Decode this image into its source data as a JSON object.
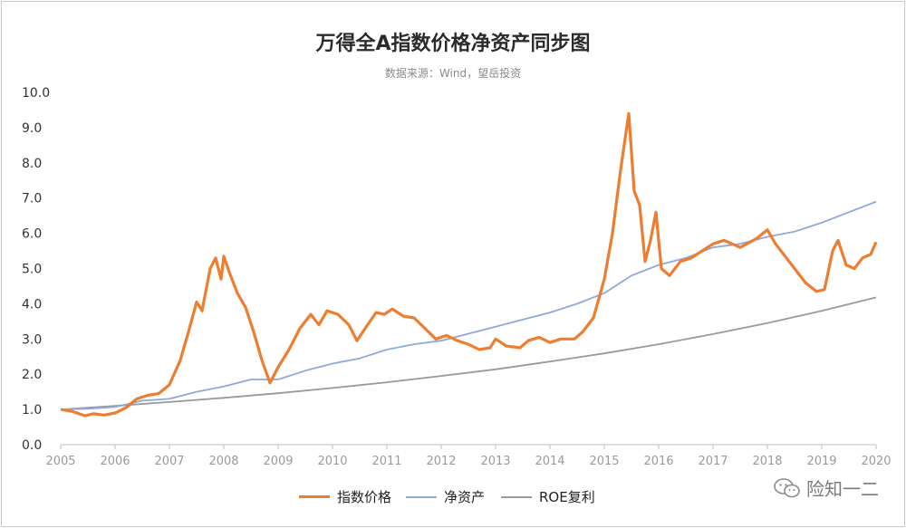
{
  "title": "万得全A指数价格净资产同步图",
  "subtitle": "数据来源：Wind，望岳投资",
  "watermark": "险知一二",
  "chart_data": {
    "type": "line",
    "title": "万得全A指数价格净资产同步图",
    "subtitle": "数据来源：Wind，望岳投资",
    "xlabel": "",
    "ylabel": "",
    "xlim": [
      2005,
      2020
    ],
    "ylim": [
      0,
      10
    ],
    "x_ticks": [
      "2005",
      "2006",
      "2007",
      "2008",
      "2009",
      "2010",
      "2011",
      "2012",
      "2013",
      "2014",
      "2015",
      "2016",
      "2017",
      "2018",
      "2019",
      "2020"
    ],
    "y_ticks": [
      "0.0",
      "1.0",
      "2.0",
      "3.0",
      "4.0",
      "5.0",
      "6.0",
      "7.0",
      "8.0",
      "9.0",
      "10.0"
    ],
    "grid": false,
    "legend_position": "bottom",
    "series": [
      {
        "name": "指数价格",
        "color": "#ed7d31",
        "points": [
          [
            2005.0,
            1.0
          ],
          [
            2005.2,
            0.95
          ],
          [
            2005.45,
            0.82
          ],
          [
            2005.6,
            0.88
          ],
          [
            2005.8,
            0.84
          ],
          [
            2006.0,
            0.9
          ],
          [
            2006.2,
            1.05
          ],
          [
            2006.4,
            1.3
          ],
          [
            2006.6,
            1.4
          ],
          [
            2006.8,
            1.45
          ],
          [
            2007.0,
            1.7
          ],
          [
            2007.2,
            2.4
          ],
          [
            2007.35,
            3.2
          ],
          [
            2007.5,
            4.05
          ],
          [
            2007.6,
            3.8
          ],
          [
            2007.75,
            5.0
          ],
          [
            2007.85,
            5.3
          ],
          [
            2007.95,
            4.7
          ],
          [
            2008.0,
            5.35
          ],
          [
            2008.1,
            4.9
          ],
          [
            2008.25,
            4.3
          ],
          [
            2008.4,
            3.9
          ],
          [
            2008.55,
            3.2
          ],
          [
            2008.7,
            2.4
          ],
          [
            2008.85,
            1.75
          ],
          [
            2009.0,
            2.2
          ],
          [
            2009.2,
            2.7
          ],
          [
            2009.4,
            3.3
          ],
          [
            2009.6,
            3.7
          ],
          [
            2009.75,
            3.4
          ],
          [
            2009.9,
            3.8
          ],
          [
            2010.1,
            3.7
          ],
          [
            2010.3,
            3.4
          ],
          [
            2010.45,
            2.95
          ],
          [
            2010.6,
            3.3
          ],
          [
            2010.8,
            3.75
          ],
          [
            2010.95,
            3.7
          ],
          [
            2011.1,
            3.85
          ],
          [
            2011.3,
            3.65
          ],
          [
            2011.5,
            3.6
          ],
          [
            2011.7,
            3.3
          ],
          [
            2011.9,
            3.0
          ],
          [
            2012.1,
            3.1
          ],
          [
            2012.3,
            2.95
          ],
          [
            2012.5,
            2.85
          ],
          [
            2012.7,
            2.7
          ],
          [
            2012.9,
            2.75
          ],
          [
            2013.0,
            3.0
          ],
          [
            2013.2,
            2.8
          ],
          [
            2013.45,
            2.75
          ],
          [
            2013.6,
            2.95
          ],
          [
            2013.8,
            3.05
          ],
          [
            2014.0,
            2.9
          ],
          [
            2014.2,
            3.0
          ],
          [
            2014.45,
            3.0
          ],
          [
            2014.6,
            3.2
          ],
          [
            2014.8,
            3.6
          ],
          [
            2015.0,
            4.7
          ],
          [
            2015.15,
            6.0
          ],
          [
            2015.3,
            7.8
          ],
          [
            2015.45,
            9.4
          ],
          [
            2015.55,
            7.2
          ],
          [
            2015.65,
            6.8
          ],
          [
            2015.75,
            5.2
          ],
          [
            2015.85,
            5.8
          ],
          [
            2015.95,
            6.6
          ],
          [
            2016.05,
            5.0
          ],
          [
            2016.2,
            4.8
          ],
          [
            2016.4,
            5.2
          ],
          [
            2016.6,
            5.3
          ],
          [
            2016.8,
            5.5
          ],
          [
            2017.0,
            5.7
          ],
          [
            2017.2,
            5.8
          ],
          [
            2017.5,
            5.6
          ],
          [
            2017.8,
            5.85
          ],
          [
            2018.0,
            6.1
          ],
          [
            2018.15,
            5.7
          ],
          [
            2018.35,
            5.3
          ],
          [
            2018.5,
            5.0
          ],
          [
            2018.7,
            4.6
          ],
          [
            2018.9,
            4.35
          ],
          [
            2019.05,
            4.4
          ],
          [
            2019.2,
            5.5
          ],
          [
            2019.3,
            5.8
          ],
          [
            2019.45,
            5.1
          ],
          [
            2019.6,
            5.0
          ],
          [
            2019.75,
            5.3
          ],
          [
            2019.9,
            5.4
          ],
          [
            2020.0,
            5.75
          ]
        ]
      },
      {
        "name": "净资产",
        "color": "#8ea9db",
        "points": [
          [
            2005.0,
            1.0
          ],
          [
            2005.5,
            1.02
          ],
          [
            2006.0,
            1.07
          ],
          [
            2006.5,
            1.25
          ],
          [
            2007.0,
            1.3
          ],
          [
            2007.5,
            1.5
          ],
          [
            2008.0,
            1.65
          ],
          [
            2008.5,
            1.85
          ],
          [
            2009.0,
            1.85
          ],
          [
            2009.5,
            2.1
          ],
          [
            2010.0,
            2.3
          ],
          [
            2010.5,
            2.45
          ],
          [
            2011.0,
            2.7
          ],
          [
            2011.5,
            2.85
          ],
          [
            2012.0,
            2.95
          ],
          [
            2012.5,
            3.15
          ],
          [
            2013.0,
            3.35
          ],
          [
            2013.5,
            3.55
          ],
          [
            2014.0,
            3.75
          ],
          [
            2014.5,
            4.0
          ],
          [
            2015.0,
            4.3
          ],
          [
            2015.5,
            4.8
          ],
          [
            2016.0,
            5.1
          ],
          [
            2016.5,
            5.3
          ],
          [
            2017.0,
            5.6
          ],
          [
            2017.5,
            5.7
          ],
          [
            2018.0,
            5.9
          ],
          [
            2018.5,
            6.05
          ],
          [
            2019.0,
            6.3
          ],
          [
            2019.5,
            6.6
          ],
          [
            2020.0,
            6.9
          ]
        ]
      },
      {
        "name": "ROE复利",
        "color": "#9a9a9a",
        "points": [
          [
            2005.0,
            1.0
          ],
          [
            2006.0,
            1.1
          ],
          [
            2007.0,
            1.21
          ],
          [
            2008.0,
            1.33
          ],
          [
            2009.0,
            1.46
          ],
          [
            2010.0,
            1.61
          ],
          [
            2011.0,
            1.77
          ],
          [
            2012.0,
            1.95
          ],
          [
            2013.0,
            2.14
          ],
          [
            2014.0,
            2.36
          ],
          [
            2015.0,
            2.59
          ],
          [
            2016.0,
            2.85
          ],
          [
            2017.0,
            3.14
          ],
          [
            2018.0,
            3.45
          ],
          [
            2019.0,
            3.8
          ],
          [
            2020.0,
            4.18
          ]
        ]
      }
    ]
  }
}
